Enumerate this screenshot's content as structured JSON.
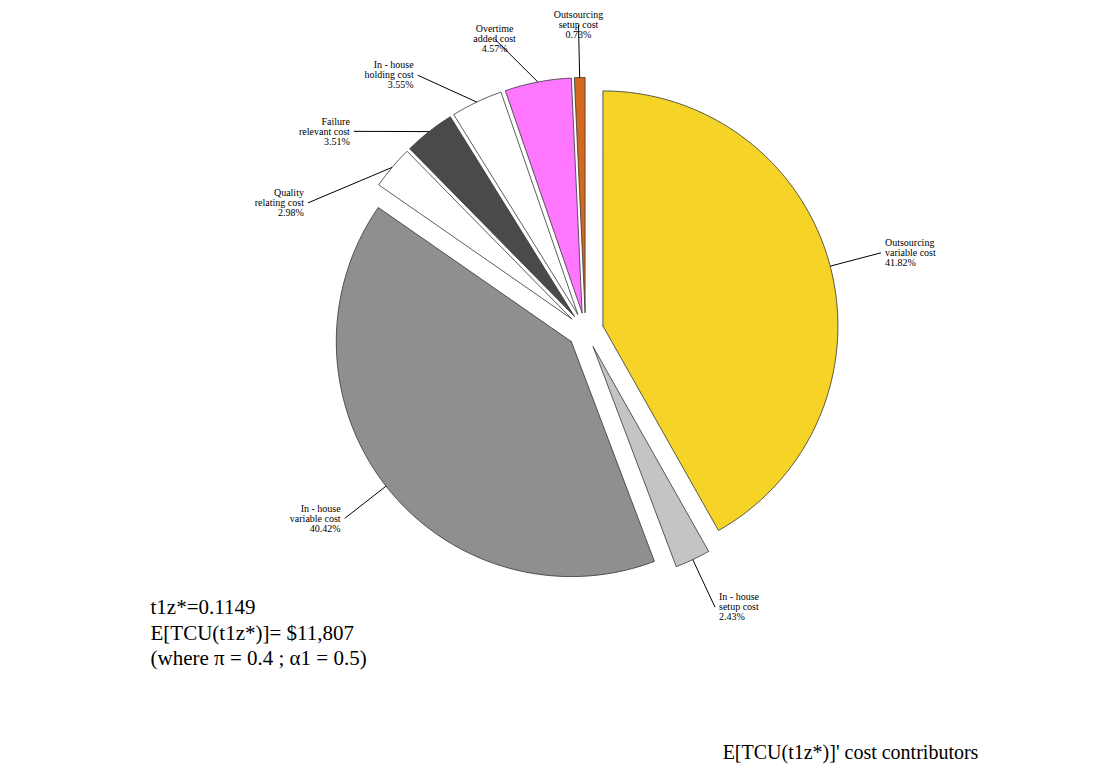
{
  "chart_data": {
    "type": "pie",
    "title": "E[TCU(t1z*)]' cost contributors",
    "categories": [
      "Outsourcing variable cost",
      "In - house setup cost",
      "In - house variable cost",
      "Quality relating cost",
      "Failure relevant cost",
      "In - house holding cost",
      "Overtime added cost",
      "Outsourcing setup cost"
    ],
    "values": [
      41.82,
      2.43,
      40.42,
      2.98,
      3.51,
      3.55,
      4.57,
      0.73
    ],
    "value_labels": [
      "41.82%",
      "2.43%",
      "40.42%",
      "2.98%",
      "3.51%",
      "3.55%",
      "4.57%",
      "0.73%"
    ],
    "colors": [
      "#f5d327",
      "#c4c4c4",
      "#8f8f8f",
      "#ffffff",
      "#4a4a4a",
      "#ffffff",
      "#ff77ff",
      "#d2691e"
    ],
    "data_labels": true,
    "annotations": [
      "t1z*=0.1149",
      "E[TCU(t1z*)]= $11,807",
      "(where π = 0.4 ; α1 = 0.5)"
    ]
  }
}
